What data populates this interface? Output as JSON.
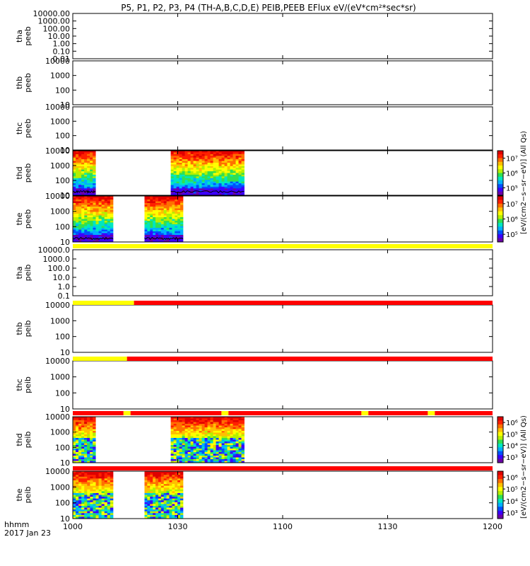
{
  "title": "P5, P1, P2, P3, P4 (TH-A,B,C,D,E) PEIB,PEEB EFlux eV/(eV*cm²*sec*sr)",
  "time_axis": {
    "label_line1": "hhmm",
    "label_line2": "2017 Jan 23",
    "range_minutes": [
      0,
      120
    ],
    "ticks": [
      {
        "label": "1000",
        "minute": 0
      },
      {
        "label": "1030",
        "minute": 30
      },
      {
        "label": "1100",
        "minute": 60
      },
      {
        "label": "1130",
        "minute": 90
      },
      {
        "label": "1200",
        "minute": 120
      }
    ]
  },
  "colors": {
    "bar_yellow": "#ffff00",
    "bar_red": "#ff0000",
    "trace_black": "#000000"
  },
  "chart_data": {
    "type": "heatmap",
    "colormap": [
      "#6a00a8",
      "#3b00ff",
      "#0050ff",
      "#00b0ff",
      "#00e6c0",
      "#30e050",
      "#b4f000",
      "#ffff00",
      "#ffc000",
      "#ff7000",
      "#ff2000",
      "#e00000"
    ],
    "panels": [
      {
        "id": "tha-peeb",
        "probe": "tha",
        "product": "peeb",
        "ytick_labels": [
          "10000.00",
          "1000.00",
          "100.00",
          "10.00",
          "1.00",
          "0.10",
          "0.01"
        ],
        "ylog_range": [
          4,
          -2
        ],
        "segments": [],
        "trace": false
      },
      {
        "id": "thb-peeb",
        "probe": "thb",
        "product": "peeb",
        "ytick_labels": [
          "10000",
          "1000",
          "100",
          "10"
        ],
        "ylog_range": [
          4,
          1
        ],
        "segments": [],
        "trace": false
      },
      {
        "id": "thc-peeb",
        "probe": "thc",
        "product": "peeb",
        "ytick_labels": [
          "10000",
          "1000",
          "100",
          "10"
        ],
        "ylog_range": [
          4,
          1
        ],
        "segments": [],
        "trace": false
      },
      {
        "id": "thd-peeb",
        "probe": "thd",
        "product": "peeb",
        "ytick_labels": [
          "10000",
          "1000",
          "100",
          "10"
        ],
        "ylog_range": [
          4,
          1
        ],
        "segments": [
          [
            0,
            6.5
          ],
          [
            28,
            49
          ]
        ],
        "trace": true,
        "colorbar": {
          "ticks": [
            "10⁷",
            "10⁶",
            "10⁵"
          ]
        }
      },
      {
        "id": "the-peeb",
        "probe": "the",
        "product": "peeb",
        "ytick_labels": [
          "10000",
          "1000",
          "100",
          "10"
        ],
        "ylog_range": [
          4,
          1
        ],
        "segments": [
          [
            0,
            11.5
          ],
          [
            20.5,
            31.5
          ]
        ],
        "trace": true,
        "colorbar": {
          "ticks": [
            "10⁷",
            "10⁶",
            "10⁵"
          ]
        }
      },
      {
        "id": "tha-peib",
        "probe": "tha",
        "product": "peib",
        "ytick_labels": [
          "10000.0",
          "1000.0",
          "100.0",
          "10.0",
          "1.0",
          "0.1"
        ],
        "ylog_range": [
          4,
          -1
        ],
        "segments": [],
        "trace": false
      },
      {
        "id": "thb-peib",
        "probe": "thb",
        "product": "peib",
        "ytick_labels": [
          "10000",
          "1000",
          "100",
          "10"
        ],
        "ylog_range": [
          4,
          1
        ],
        "segments": [],
        "trace": false
      },
      {
        "id": "thc-peib",
        "probe": "thc",
        "product": "peib",
        "ytick_labels": [
          "10000",
          "1000",
          "100",
          "10"
        ],
        "ylog_range": [
          4,
          1
        ],
        "segments": [],
        "trace": false
      },
      {
        "id": "thd-peib",
        "probe": "thd",
        "product": "peib",
        "ytick_labels": [
          "10000",
          "1000",
          "100",
          "10"
        ],
        "ylog_range": [
          4,
          1
        ],
        "segments": [
          [
            0,
            6.5
          ],
          [
            28,
            49
          ]
        ],
        "trace": false,
        "colorbar": {
          "ticks": [
            "10⁶",
            "10⁵",
            "10⁴",
            "10³"
          ]
        }
      },
      {
        "id": "the-peib",
        "probe": "the",
        "product": "peib",
        "ytick_labels": [
          "10000",
          "1000",
          "100",
          "10"
        ],
        "ylog_range": [
          4,
          1
        ],
        "segments": [
          [
            0,
            11.5
          ],
          [
            20.5,
            31.5
          ]
        ],
        "trace": false,
        "colorbar": {
          "ticks": [
            "10⁶",
            "10⁵",
            "10⁴",
            "10³"
          ]
        }
      }
    ],
    "mode_bars": [
      {
        "after_panel": "the-peeb",
        "segments": [
          {
            "start": 0,
            "end": 120,
            "color": "yellow"
          }
        ]
      },
      {
        "after_panel": "tha-peib",
        "segments": [
          {
            "start": 0,
            "end": 17.5,
            "color": "yellow"
          },
          {
            "start": 17.5,
            "end": 120,
            "color": "red"
          }
        ]
      },
      {
        "after_panel": "thb-peib",
        "segments": [
          {
            "start": 0,
            "end": 15.5,
            "color": "yellow"
          },
          {
            "start": 15.5,
            "end": 120,
            "color": "red"
          }
        ]
      },
      {
        "after_panel": "thc-peib",
        "segments": [
          {
            "start": 0,
            "end": 14.5,
            "color": "red"
          },
          {
            "start": 14.5,
            "end": 16.5,
            "color": "yellow"
          },
          {
            "start": 16.5,
            "end": 42.5,
            "color": "red"
          },
          {
            "start": 42.5,
            "end": 44.5,
            "color": "yellow"
          },
          {
            "start": 44.5,
            "end": 82.5,
            "color": "red"
          },
          {
            "start": 82.5,
            "end": 84.5,
            "color": "yellow"
          },
          {
            "start": 84.5,
            "end": 101.5,
            "color": "red"
          },
          {
            "start": 101.5,
            "end": 103.5,
            "color": "yellow"
          },
          {
            "start": 103.5,
            "end": 120,
            "color": "red"
          }
        ]
      },
      {
        "after_panel": "thd-peib",
        "segments": [
          {
            "start": 0,
            "end": 120,
            "color": "red"
          }
        ]
      }
    ],
    "colorbar_labels": {
      "peeb": "[eV/(cm2−s−sr−eV)] (All Qs)",
      "peib": "[eV/(cm2−s−sr−eV)] (All Qs)"
    }
  }
}
